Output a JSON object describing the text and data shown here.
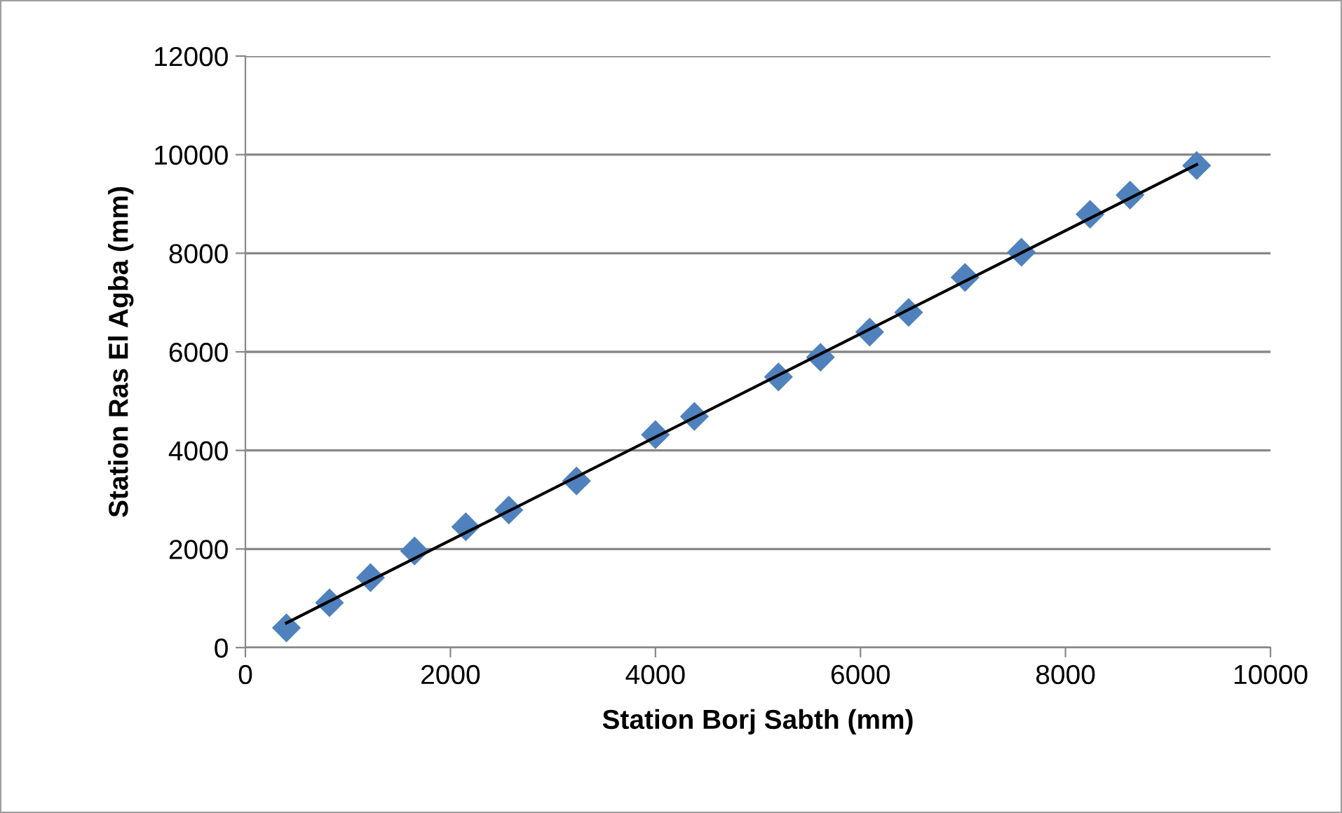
{
  "chart_data": {
    "type": "scatter",
    "xlabel": "Station Borj Sabth (mm)",
    "ylabel": "Station Ras El Agba (mm)",
    "series": [
      {
        "color": "#4f81bd",
        "marker": "diamond",
        "x": [
          400,
          820,
          1220,
          1650,
          2150,
          2570,
          3230,
          4000,
          4380,
          5200,
          5610,
          6090,
          6470,
          7020,
          7570,
          8240,
          8630,
          9280
        ],
        "values": [
          400,
          910,
          1420,
          1960,
          2450,
          2790,
          3380,
          4320,
          4690,
          5490,
          5890,
          6400,
          6800,
          7510,
          8020,
          8790,
          9180,
          9780
        ]
      },
      {
        "type": "line",
        "color": "#000000",
        "marker": "none",
        "x": [
          400,
          9280
        ],
        "values": [
          500,
          9800
        ]
      }
    ],
    "xlim": [
      0,
      10000
    ],
    "xticks": [
      0,
      2000,
      4000,
      6000,
      8000,
      10000
    ],
    "ylim": [
      0,
      12000
    ],
    "yticks": [
      0,
      2000,
      4000,
      6000,
      8000,
      10000,
      12000
    ],
    "grid": "y"
  }
}
